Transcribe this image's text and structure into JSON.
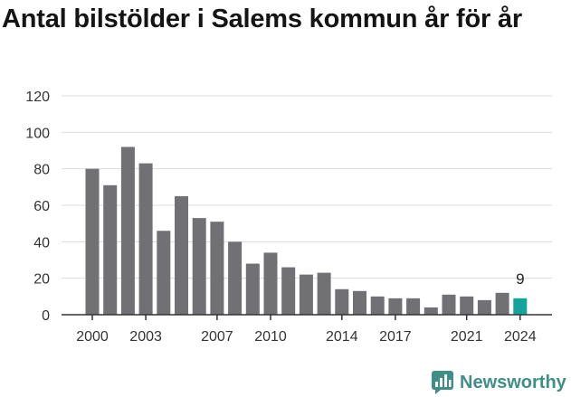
{
  "title": "Antal bilstölder i Salems kommun år för år",
  "brand": {
    "name": "Newsworthy",
    "logo_icon": "newsworthy-chart-icon",
    "color": "#3f8f88"
  },
  "colors": {
    "bar": "#707075",
    "highlight": "#15a49a",
    "grid": "#dcdcdc",
    "axis": "#333333"
  },
  "chart_data": {
    "type": "bar",
    "title": "Antal bilstölder i Salems kommun år för år",
    "xlabel": "",
    "ylabel": "",
    "ylim": [
      0,
      120
    ],
    "yticks": [
      0,
      20,
      40,
      60,
      80,
      100,
      120
    ],
    "grid": true,
    "legend": "none",
    "categories": [
      "2000",
      "2001",
      "2002",
      "2003",
      "2004",
      "2005",
      "2006",
      "2007",
      "2008",
      "2009",
      "2010",
      "2011",
      "2012",
      "2013",
      "2014",
      "2015",
      "2016",
      "2017",
      "2018",
      "2019",
      "2020",
      "2021",
      "2022",
      "2023",
      "2024"
    ],
    "values": [
      80,
      71,
      92,
      83,
      46,
      65,
      53,
      51,
      40,
      28,
      34,
      26,
      22,
      23,
      14,
      13,
      10,
      9,
      9,
      4,
      11,
      10,
      8,
      12,
      9
    ],
    "xtick_labels": [
      "2000",
      "2003",
      "2007",
      "2010",
      "2014",
      "2017",
      "2021",
      "2024"
    ],
    "highlight_category": "2024",
    "data_labels": [
      {
        "category": "2024",
        "text": "9"
      }
    ]
  }
}
